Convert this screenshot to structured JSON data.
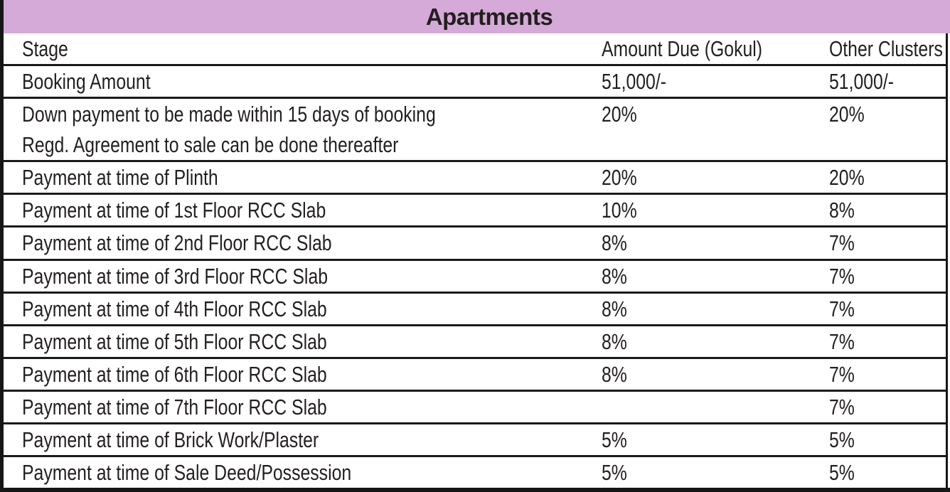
{
  "title": "Apartments",
  "colors": {
    "title_band_bg": "#d5a9d8",
    "text": "#231f20",
    "rule_lines": "#1a1a1a"
  },
  "table": {
    "columns": [
      "Stage",
      "Amount Due (Gokul)",
      "Other Clusters"
    ],
    "rows": [
      {
        "stage": "Booking Amount",
        "gokul": "51,000/-",
        "other": "51,000/-"
      },
      {
        "stage": "Down payment to be made within 15 days of booking",
        "stage_line2": "Regd. Agreement to sale can be done thereafter",
        "gokul": "20%",
        "other": "20%"
      },
      {
        "stage": "Payment at time of Plinth",
        "gokul": "20%",
        "other": "20%"
      },
      {
        "stage": "Payment at time of 1st Floor RCC Slab",
        "gokul": "10%",
        "other": "8%"
      },
      {
        "stage": "Payment at time of 2nd Floor RCC Slab",
        "gokul": "8%",
        "other": "7%"
      },
      {
        "stage": "Payment at time of 3rd Floor RCC Slab",
        "gokul": "8%",
        "other": "7%"
      },
      {
        "stage": "Payment at time of 4th Floor RCC Slab",
        "gokul": "8%",
        "other": "7%"
      },
      {
        "stage": "Payment at time of 5th Floor RCC Slab",
        "gokul": "8%",
        "other": "7%"
      },
      {
        "stage": "Payment at time of 6th Floor RCC Slab",
        "gokul": "8%",
        "other": "7%"
      },
      {
        "stage": "Payment at time of 7th Floor RCC Slab",
        "gokul": "",
        "other": "7%"
      },
      {
        "stage": "Payment at time of Brick Work/Plaster",
        "gokul": "5%",
        "other": "5%"
      },
      {
        "stage": "Payment at time of Sale Deed/Possession",
        "gokul": "5%",
        "other": "5%"
      }
    ]
  }
}
